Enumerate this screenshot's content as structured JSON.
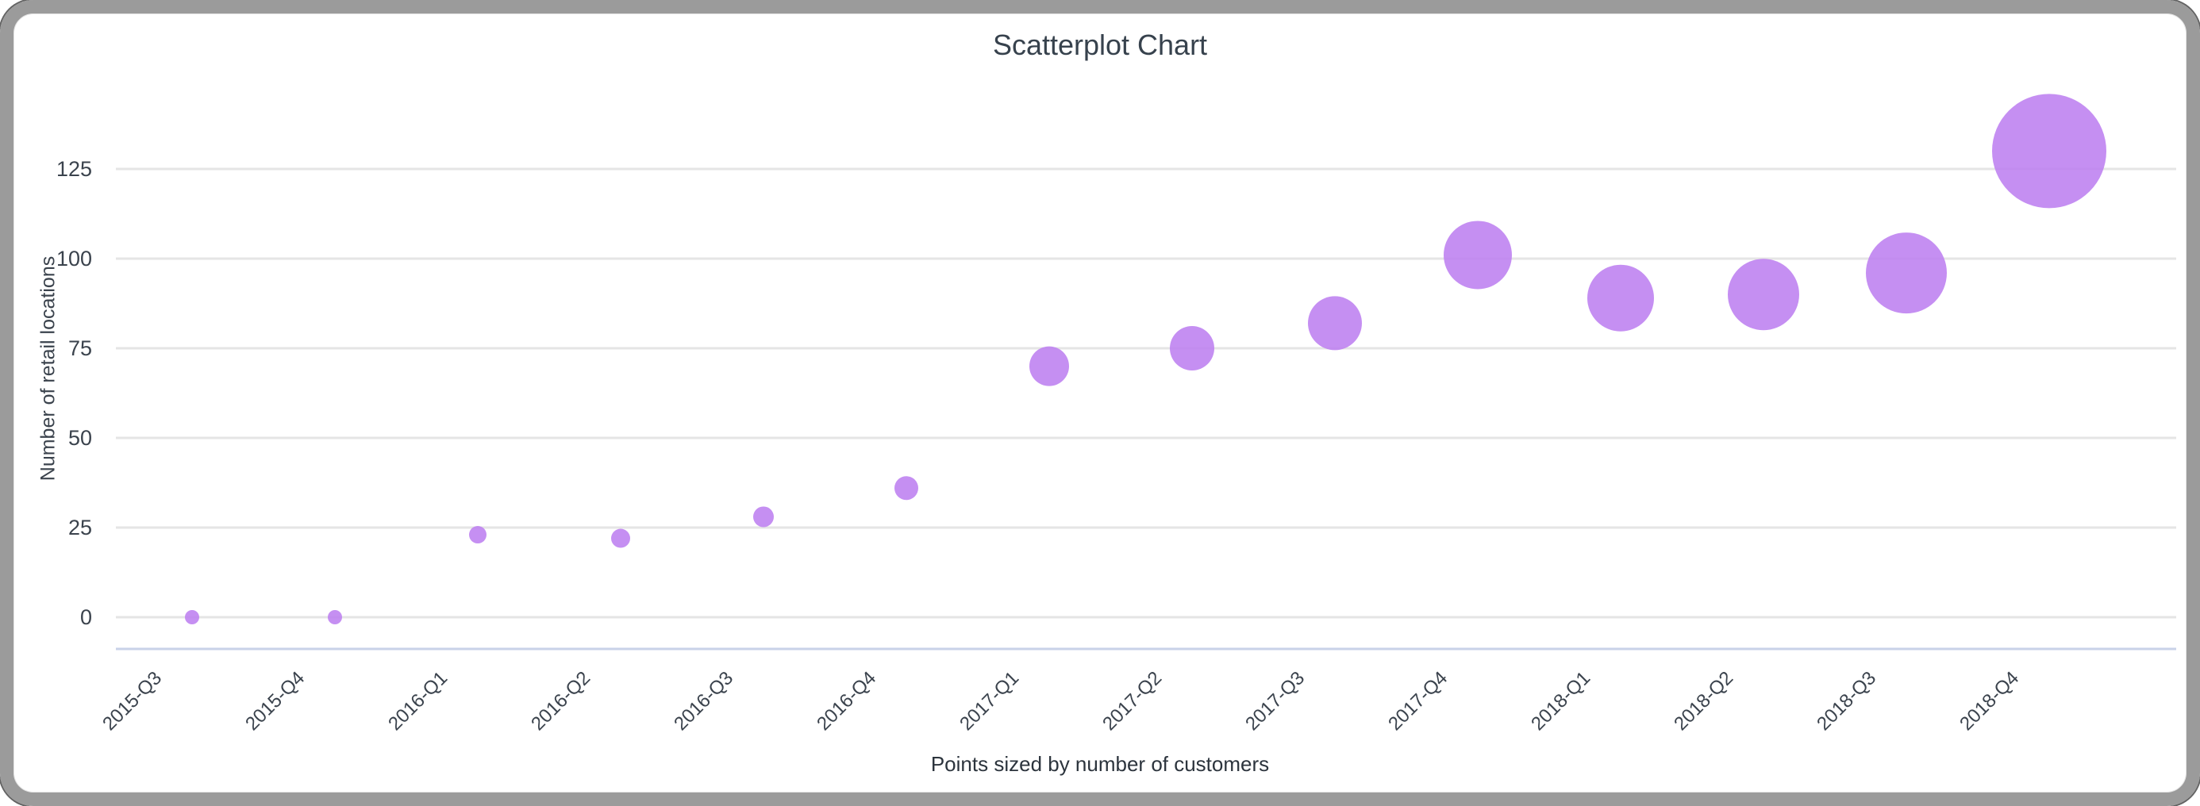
{
  "frame": {
    "border_color": "#9b9b9b",
    "background": "#ffffff"
  },
  "chart_data": {
    "type": "scatter",
    "title": "Scatterplot Chart",
    "caption": "Points sized by number of customers",
    "xlabel": "",
    "ylabel": "Number of retail locations",
    "categories": [
      "2015-Q3",
      "2015-Q4",
      "2016-Q1",
      "2016-Q2",
      "2016-Q3",
      "2016-Q4",
      "2017-Q1",
      "2017-Q2",
      "2017-Q3",
      "2017-Q4",
      "2018-Q1",
      "2018-Q2",
      "2018-Q3",
      "2018-Q4"
    ],
    "series": [
      {
        "name": "Number of retail locations",
        "values": [
          0,
          0,
          23,
          22,
          28,
          36,
          70,
          75,
          82,
          101,
          89,
          90,
          96,
          130
        ],
        "point_radius_px": [
          9,
          9,
          11,
          12,
          13,
          15,
          25,
          28,
          34,
          43,
          42,
          45,
          51,
          72
        ]
      }
    ],
    "yticks": [
      0,
      25,
      50,
      75,
      100,
      125
    ],
    "ylim": [
      0,
      140
    ],
    "grid": true,
    "legend": "none",
    "x_label_rotation_deg": -45,
    "colors": {
      "point": "#bd7ff0",
      "gridline": "#e5e5e5",
      "axis_line": "#c9d2e8",
      "tick_text": "#3b434d",
      "title_text": "#37424d"
    }
  }
}
